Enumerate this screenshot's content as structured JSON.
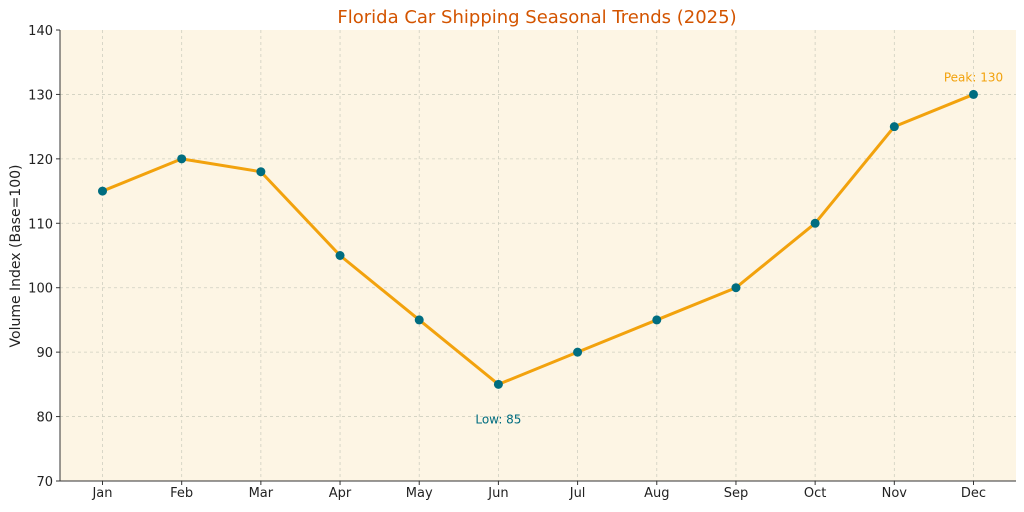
{
  "colors": {
    "plot_background": "#fdf5e4",
    "title": "#d35400",
    "line": "#f2a20d",
    "marker": "#006d80",
    "grid": "#cfcfc0",
    "axis": "#333333",
    "low_annotation": "#006d80",
    "peak_annotation": "#f2a20d"
  },
  "chart_data": {
    "type": "line",
    "title": "Florida Car Shipping Seasonal Trends (2025)",
    "xlabel": "",
    "ylabel": "Volume Index (Base=100)",
    "categories": [
      "Jan",
      "Feb",
      "Mar",
      "Apr",
      "May",
      "Jun",
      "Jul",
      "Aug",
      "Sep",
      "Oct",
      "Nov",
      "Dec"
    ],
    "values": [
      115,
      120,
      118,
      105,
      95,
      85,
      90,
      95,
      100,
      110,
      125,
      130
    ],
    "ylim": [
      70,
      140
    ],
    "yticks": [
      70,
      80,
      90,
      100,
      110,
      120,
      130,
      140
    ],
    "grid": true,
    "grid_style": "dashed",
    "annotations": [
      {
        "text": "Low: 85",
        "category": "Jun",
        "value": 85,
        "placement": "below",
        "color_key": "low_annotation"
      },
      {
        "text": "Peak: 130",
        "category": "Dec",
        "value": 130,
        "placement": "above",
        "color_key": "peak_annotation"
      }
    ]
  }
}
